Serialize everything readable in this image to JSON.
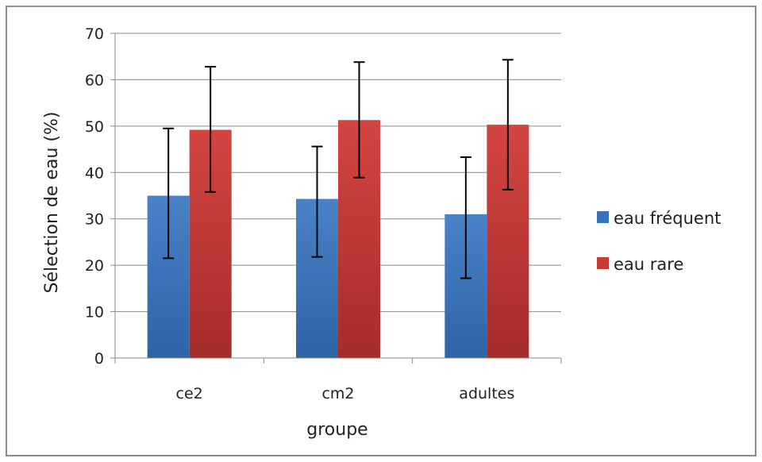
{
  "chart_data": {
    "type": "bar",
    "title": "",
    "xlabel": "groupe",
    "ylabel": "Sélection de eau (%)",
    "categories": [
      "ce2",
      "cm2",
      "adultes"
    ],
    "ylim": [
      0,
      70
    ],
    "yticks": [
      0,
      10,
      20,
      30,
      40,
      50,
      60,
      70
    ],
    "grid": true,
    "legend_position": "right",
    "series": [
      {
        "name": "eau fréquent",
        "color": "#3a72b8",
        "values": [
          35,
          34.3,
          31
        ],
        "error_low": [
          21.5,
          21.8,
          17.2
        ],
        "error_high": [
          49.5,
          45.6,
          43.3
        ]
      },
      {
        "name": "eau rare",
        "color": "#c43a37",
        "values": [
          49.2,
          51.3,
          50.3
        ],
        "error_low": [
          35.8,
          38.9,
          36.3
        ],
        "error_high": [
          62.8,
          63.8,
          64.3
        ]
      }
    ]
  }
}
